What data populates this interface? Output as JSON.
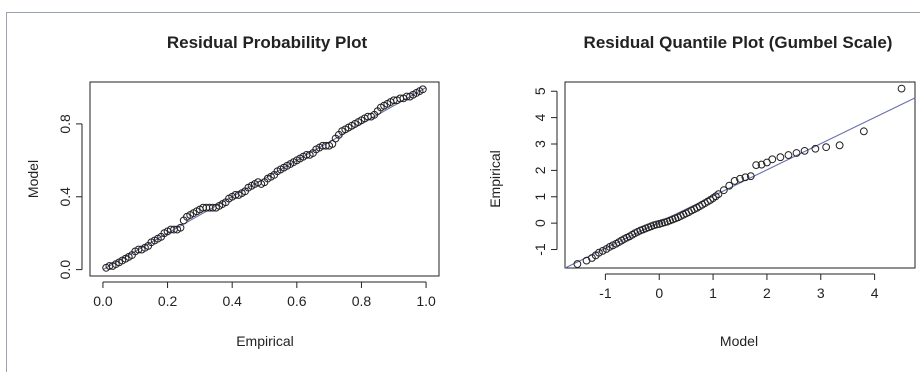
{
  "chart_data": [
    {
      "type": "scatter",
      "title": "Residual Probability Plot",
      "xlabel": "Empirical",
      "ylabel": "Model",
      "xlim": [
        -0.04,
        1.04
      ],
      "ylim": [
        -0.035,
        1.03
      ],
      "x_ticks": [
        0.0,
        0.2,
        0.4,
        0.6,
        0.8,
        1.0
      ],
      "x_tick_labels": [
        "0.0",
        "0.2",
        "0.4",
        "0.6",
        "0.8",
        "1.0"
      ],
      "y_ticks": [
        0.0,
        0.4,
        0.8
      ],
      "y_tick_labels": [
        "0.0",
        "0.4",
        "0.8"
      ],
      "reference_line": {
        "from": [
          0,
          0
        ],
        "to": [
          1,
          1
        ],
        "color": "#6a6fb0"
      },
      "marker": "open-circle",
      "points": [
        [
          0.01,
          0.01
        ],
        [
          0.02,
          0.02
        ],
        [
          0.03,
          0.02
        ],
        [
          0.04,
          0.03
        ],
        [
          0.05,
          0.04
        ],
        [
          0.06,
          0.05
        ],
        [
          0.07,
          0.06
        ],
        [
          0.08,
          0.07
        ],
        [
          0.09,
          0.08
        ],
        [
          0.1,
          0.1
        ],
        [
          0.11,
          0.11
        ],
        [
          0.12,
          0.11
        ],
        [
          0.13,
          0.12
        ],
        [
          0.14,
          0.13
        ],
        [
          0.15,
          0.15
        ],
        [
          0.16,
          0.16
        ],
        [
          0.17,
          0.17
        ],
        [
          0.18,
          0.18
        ],
        [
          0.19,
          0.2
        ],
        [
          0.2,
          0.21
        ],
        [
          0.21,
          0.22
        ],
        [
          0.22,
          0.22
        ],
        [
          0.23,
          0.22
        ],
        [
          0.24,
          0.23
        ],
        [
          0.25,
          0.27
        ],
        [
          0.26,
          0.29
        ],
        [
          0.27,
          0.3
        ],
        [
          0.28,
          0.31
        ],
        [
          0.29,
          0.32
        ],
        [
          0.3,
          0.33
        ],
        [
          0.31,
          0.34
        ],
        [
          0.32,
          0.34
        ],
        [
          0.33,
          0.34
        ],
        [
          0.34,
          0.34
        ],
        [
          0.35,
          0.34
        ],
        [
          0.36,
          0.35
        ],
        [
          0.37,
          0.36
        ],
        [
          0.38,
          0.37
        ],
        [
          0.39,
          0.39
        ],
        [
          0.4,
          0.4
        ],
        [
          0.41,
          0.41
        ],
        [
          0.42,
          0.41
        ],
        [
          0.43,
          0.42
        ],
        [
          0.44,
          0.43
        ],
        [
          0.45,
          0.45
        ],
        [
          0.46,
          0.46
        ],
        [
          0.47,
          0.47
        ],
        [
          0.48,
          0.48
        ],
        [
          0.49,
          0.47
        ],
        [
          0.5,
          0.48
        ],
        [
          0.51,
          0.5
        ],
        [
          0.52,
          0.51
        ],
        [
          0.53,
          0.52
        ],
        [
          0.54,
          0.54
        ],
        [
          0.55,
          0.55
        ],
        [
          0.56,
          0.56
        ],
        [
          0.57,
          0.57
        ],
        [
          0.58,
          0.58
        ],
        [
          0.59,
          0.59
        ],
        [
          0.6,
          0.6
        ],
        [
          0.61,
          0.61
        ],
        [
          0.62,
          0.62
        ],
        [
          0.63,
          0.63
        ],
        [
          0.64,
          0.63
        ],
        [
          0.65,
          0.64
        ],
        [
          0.66,
          0.66
        ],
        [
          0.67,
          0.67
        ],
        [
          0.68,
          0.68
        ],
        [
          0.69,
          0.68
        ],
        [
          0.7,
          0.68
        ],
        [
          0.71,
          0.69
        ],
        [
          0.72,
          0.72
        ],
        [
          0.73,
          0.74
        ],
        [
          0.74,
          0.76
        ],
        [
          0.75,
          0.77
        ],
        [
          0.76,
          0.78
        ],
        [
          0.77,
          0.79
        ],
        [
          0.78,
          0.8
        ],
        [
          0.79,
          0.81
        ],
        [
          0.8,
          0.82
        ],
        [
          0.81,
          0.83
        ],
        [
          0.82,
          0.84
        ],
        [
          0.83,
          0.84
        ],
        [
          0.84,
          0.85
        ],
        [
          0.85,
          0.87
        ],
        [
          0.86,
          0.89
        ],
        [
          0.87,
          0.9
        ],
        [
          0.88,
          0.91
        ],
        [
          0.89,
          0.92
        ],
        [
          0.9,
          0.93
        ],
        [
          0.91,
          0.93
        ],
        [
          0.92,
          0.94
        ],
        [
          0.93,
          0.94
        ],
        [
          0.94,
          0.95
        ],
        [
          0.95,
          0.95
        ],
        [
          0.96,
          0.96
        ],
        [
          0.97,
          0.97
        ],
        [
          0.98,
          0.98
        ],
        [
          0.99,
          0.99
        ]
      ]
    },
    {
      "type": "scatter",
      "title": "Residual Quantile Plot (Gumbel Scale)",
      "xlabel": "Model",
      "ylabel": "Empirical",
      "xlim": [
        -1.75,
        4.75
      ],
      "ylim": [
        -1.7,
        5.35
      ],
      "x_ticks": [
        -1,
        0,
        1,
        2,
        3,
        4
      ],
      "x_tick_labels": [
        "-1",
        "0",
        "1",
        "2",
        "3",
        "4"
      ],
      "y_ticks": [
        -1,
        0,
        1,
        2,
        3,
        4,
        5
      ],
      "y_tick_labels": [
        "-1",
        "0",
        "1",
        "2",
        "3",
        "4",
        "5"
      ],
      "reference_line": {
        "from": [
          -1.75,
          -1.75
        ],
        "to": [
          4.75,
          4.75
        ],
        "color": "#6a6fb0"
      },
      "marker": "open-circle",
      "points": [
        [
          -1.52,
          -1.55
        ],
        [
          -1.35,
          -1.42
        ],
        [
          -1.25,
          -1.32
        ],
        [
          -1.18,
          -1.22
        ],
        [
          -1.12,
          -1.12
        ],
        [
          -1.05,
          -1.05
        ],
        [
          -0.98,
          -0.98
        ],
        [
          -0.92,
          -0.9
        ],
        [
          -0.86,
          -0.84
        ],
        [
          -0.8,
          -0.78
        ],
        [
          -0.75,
          -0.72
        ],
        [
          -0.7,
          -0.66
        ],
        [
          -0.65,
          -0.6
        ],
        [
          -0.6,
          -0.55
        ],
        [
          -0.55,
          -0.5
        ],
        [
          -0.5,
          -0.44
        ],
        [
          -0.45,
          -0.38
        ],
        [
          -0.4,
          -0.33
        ],
        [
          -0.35,
          -0.28
        ],
        [
          -0.3,
          -0.24
        ],
        [
          -0.25,
          -0.2
        ],
        [
          -0.2,
          -0.16
        ],
        [
          -0.15,
          -0.12
        ],
        [
          -0.1,
          -0.08
        ],
        [
          -0.05,
          -0.05
        ],
        [
          0.0,
          -0.03
        ],
        [
          0.05,
          0.0
        ],
        [
          0.1,
          0.03
        ],
        [
          0.15,
          0.06
        ],
        [
          0.2,
          0.1
        ],
        [
          0.25,
          0.14
        ],
        [
          0.3,
          0.18
        ],
        [
          0.35,
          0.22
        ],
        [
          0.4,
          0.27
        ],
        [
          0.45,
          0.32
        ],
        [
          0.5,
          0.37
        ],
        [
          0.55,
          0.42
        ],
        [
          0.6,
          0.48
        ],
        [
          0.65,
          0.53
        ],
        [
          0.7,
          0.58
        ],
        [
          0.75,
          0.64
        ],
        [
          0.8,
          0.7
        ],
        [
          0.85,
          0.76
        ],
        [
          0.9,
          0.82
        ],
        [
          0.95,
          0.88
        ],
        [
          1.0,
          0.95
        ],
        [
          1.05,
          1.02
        ],
        [
          1.1,
          1.1
        ],
        [
          1.2,
          1.25
        ],
        [
          1.3,
          1.42
        ],
        [
          1.4,
          1.6
        ],
        [
          1.5,
          1.68
        ],
        [
          1.6,
          1.74
        ],
        [
          1.7,
          1.78
        ],
        [
          1.8,
          2.2
        ],
        [
          1.9,
          2.22
        ],
        [
          2.0,
          2.3
        ],
        [
          2.1,
          2.42
        ],
        [
          2.25,
          2.5
        ],
        [
          2.4,
          2.58
        ],
        [
          2.55,
          2.66
        ],
        [
          2.7,
          2.74
        ],
        [
          2.9,
          2.82
        ],
        [
          3.1,
          2.88
        ],
        [
          3.35,
          2.95
        ],
        [
          3.8,
          3.48
        ],
        [
          4.5,
          5.1
        ]
      ]
    }
  ]
}
